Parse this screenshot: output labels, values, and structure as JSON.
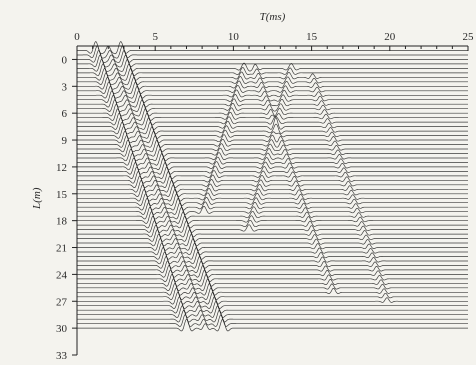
{
  "chart_data": {
    "type": "line",
    "xlabel": "T(ms)",
    "ylabel": "L(m)",
    "x_ticks": [
      0,
      5,
      10,
      15,
      20,
      25
    ],
    "y_ticks": [
      0,
      3,
      6,
      9,
      12,
      15,
      18,
      21,
      24,
      27,
      30,
      33
    ],
    "x_tick_labels": [
      "0",
      "5",
      "10",
      "15",
      "20",
      "25"
    ],
    "y_tick_labels": [
      "0",
      "3",
      "6",
      "9",
      "12",
      "15",
      "18",
      "21",
      "24",
      "27",
      "30",
      "33"
    ],
    "xlim": [
      0,
      25
    ],
    "ylim": [
      -1.5,
      33
    ],
    "x_axis_position": "top",
    "y_axis_inverted": true,
    "grid": false,
    "trace_start_depth": -1,
    "trace_end_depth": 30,
    "trace_spacing": 0.5,
    "trace_baseline_x_start": 0,
    "trace_baseline_x_end": 25,
    "colors": {
      "trace": "#1c1c1c",
      "axis": "#222222",
      "background": "#f4f3ee"
    },
    "events": [
      {
        "name": "direct-p",
        "t0": 1.2,
        "slope_ms_per_m": 0.1875,
        "amp": 1.0,
        "width": 0.35
      },
      {
        "name": "direct-s",
        "t0": 2.8,
        "slope_ms_per_m": 0.21,
        "amp": 1.0,
        "width": 0.35
      },
      {
        "name": "direct-p-2",
        "t0": 2.0,
        "slope_ms_per_m": 0.2,
        "amp": 0.5,
        "width": 0.3
      },
      {
        "name": "up-wave-a",
        "t0": 11.0,
        "slope_ms_per_m": -0.16,
        "amp": 0.6,
        "width": 0.35,
        "from_depth": 1,
        "to_depth": 17
      },
      {
        "name": "up-wave-b",
        "t0": 14.0,
        "slope_ms_per_m": -0.15,
        "amp": 0.55,
        "width": 0.35,
        "from_depth": 1,
        "to_depth": 19
      },
      {
        "name": "down-wave-c",
        "t0": 11.0,
        "slope_ms_per_m": 0.2,
        "amp": 0.45,
        "width": 0.3,
        "from_depth": 1,
        "to_depth": 26
      },
      {
        "name": "down-wave-d",
        "t0": 14.5,
        "slope_ms_per_m": 0.19,
        "amp": 0.4,
        "width": 0.3,
        "from_depth": 2,
        "to_depth": 27
      }
    ]
  }
}
